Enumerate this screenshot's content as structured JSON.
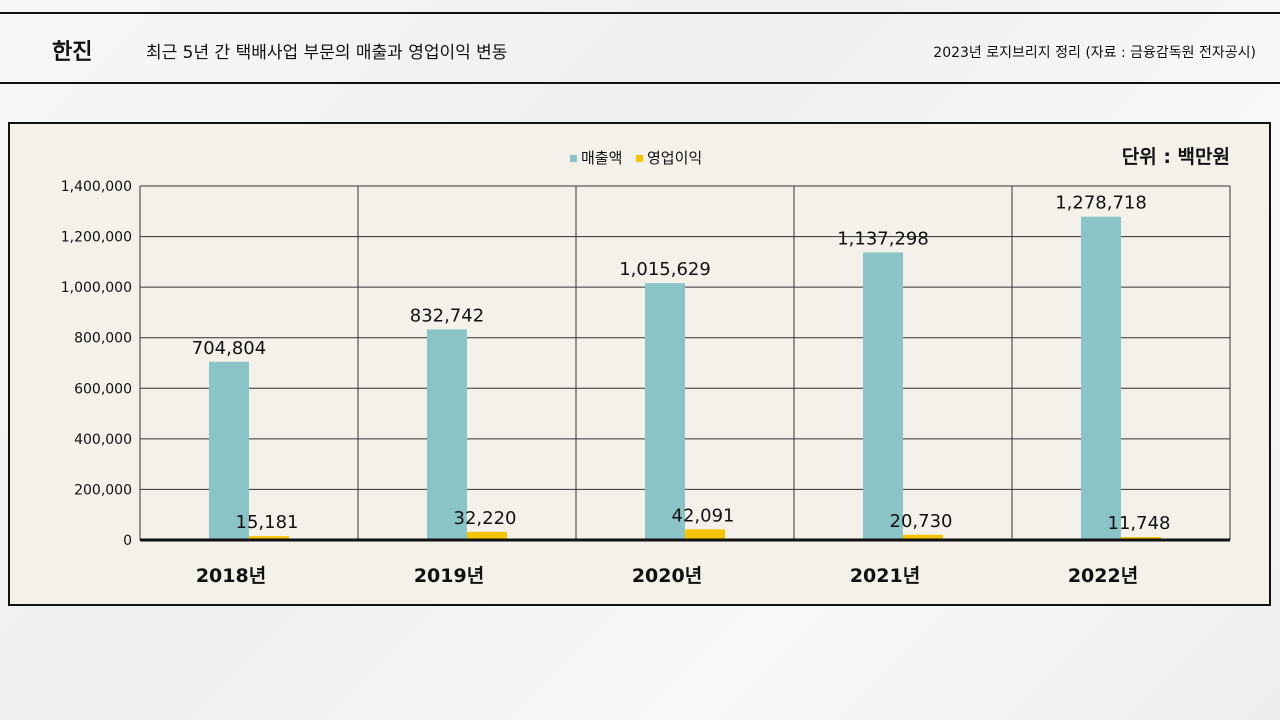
{
  "header": {
    "company": "한진",
    "title": "최근 5년 간 택배사업 부문의 매출과 영업이익 변동",
    "source": "2023년 로지브리지 정리 (자료 : 금융감독원 전자공시)"
  },
  "colors": {
    "revenue": "#8ac4c6",
    "profit": "#f5c400",
    "grid": "#333333",
    "axis": "#111111"
  },
  "chart_data": {
    "type": "bar",
    "title": "",
    "unit_label": "단위 : 백만원",
    "categories": [
      "2018년",
      "2019년",
      "2020년",
      "2021년",
      "2022년"
    ],
    "series": [
      {
        "name": "매출액",
        "values": [
          704804,
          832742,
          1015629,
          1137298,
          1278718
        ]
      },
      {
        "name": "영업이익",
        "values": [
          15181,
          32220,
          42091,
          20730,
          11748
        ]
      }
    ],
    "data_labels": {
      "매출액": [
        "704,804",
        "832,742",
        "1,015,629",
        "1,137,298",
        "1,278,718"
      ],
      "영업이익": [
        "15,181",
        "32,220",
        "42,091",
        "20,730",
        "11,748"
      ]
    },
    "yticks": [
      0,
      200000,
      400000,
      600000,
      800000,
      1000000,
      1200000,
      1400000
    ],
    "ytick_labels": [
      "0",
      "200,000",
      "400,000",
      "600,000",
      "800,000",
      "1,000,000",
      "1,200,000",
      "1,400,000"
    ],
    "ylim": [
      0,
      1400000
    ],
    "xlabel": "",
    "ylabel": "",
    "legend": "top-center",
    "grid": true
  }
}
